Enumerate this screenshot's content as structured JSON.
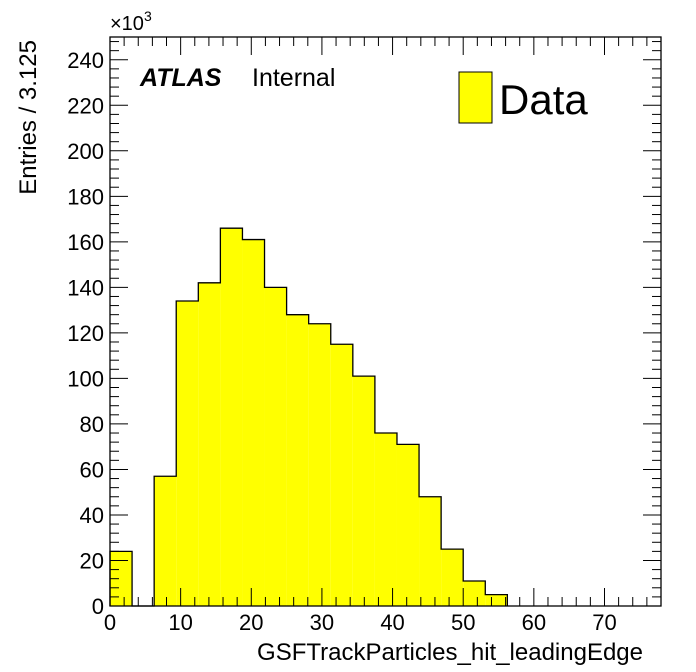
{
  "chart_data": {
    "type": "bar",
    "bin_width": 3.125,
    "bin_edges": [
      0,
      3.125,
      6.25,
      9.375,
      12.5,
      15.625,
      18.75,
      21.875,
      25,
      28.125,
      31.25,
      34.375,
      37.5,
      40.625,
      43.75,
      46.875,
      50,
      53.125,
      56.25
    ],
    "values": [
      24,
      0,
      57,
      134,
      142,
      166,
      161,
      140,
      128,
      124,
      115,
      101,
      76,
      71,
      48,
      25,
      11,
      5
    ],
    "fill_color": "#ffff00",
    "line_color": "#000000",
    "xlim": [
      0,
      78
    ],
    "ylim": [
      0,
      250
    ],
    "x_ticks": [
      "0",
      "10",
      "20",
      "30",
      "40",
      "50",
      "60",
      "70"
    ],
    "x_tick_values": [
      0,
      10,
      20,
      30,
      40,
      50,
      60,
      70
    ],
    "y_ticks": [
      "0",
      "20",
      "40",
      "60",
      "80",
      "100",
      "120",
      "140",
      "160",
      "180",
      "200",
      "220",
      "240"
    ],
    "y_tick_values": [
      0,
      20,
      40,
      60,
      80,
      100,
      120,
      140,
      160,
      180,
      200,
      220,
      240
    ],
    "xlabel": "GSFTrackParticles_hit_leadingEdge",
    "ylabel": "Entries / 3.125",
    "y_multiplier_base": "×10",
    "y_multiplier_exp": "3",
    "atlas_label": "ATLAS",
    "atlas_sublabel": "Internal",
    "legend": [
      {
        "name": "Data",
        "color": "#ffff00"
      }
    ],
    "legend_position": "top-right",
    "grid": false
  }
}
